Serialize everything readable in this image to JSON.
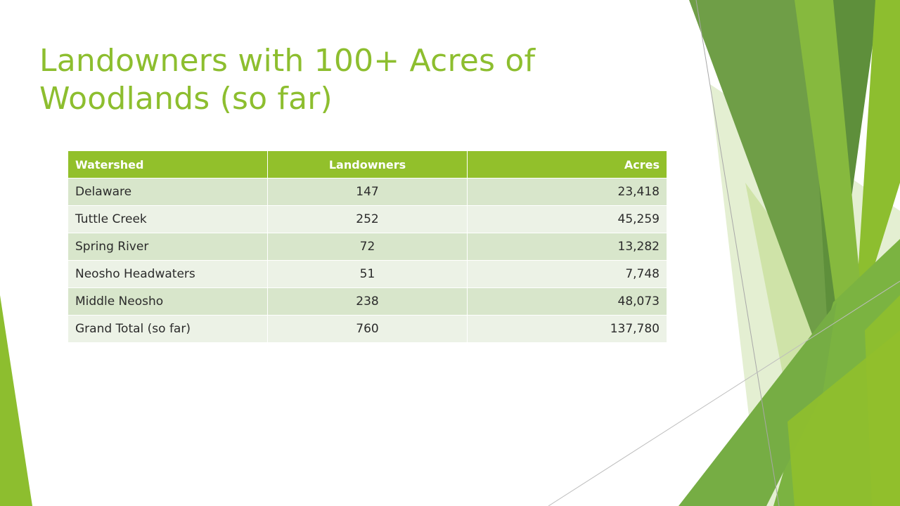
{
  "slide": {
    "title_lines": [
      "Landowners with 100+ Acres of",
      "Woodlands (so far)"
    ]
  },
  "table": {
    "headers": [
      "Watershed",
      "Landowners",
      "Acres"
    ],
    "rows": [
      [
        "Delaware",
        "147",
        "23,418"
      ],
      [
        "Tuttle Creek",
        "252",
        "45,259"
      ],
      [
        "Spring River",
        "72",
        "13,282"
      ],
      [
        "Neosho Headwaters",
        "51",
        "7,748"
      ],
      [
        "Middle Neosho",
        "238",
        "48,073"
      ],
      [
        "Grand Total (so far)",
        "760",
        "137,780"
      ]
    ]
  },
  "colors": {
    "accent": "#8dbe2f",
    "header_fill": "#92c02b",
    "row_dark": "#d8e6cb",
    "row_light": "#ecf2e6"
  }
}
